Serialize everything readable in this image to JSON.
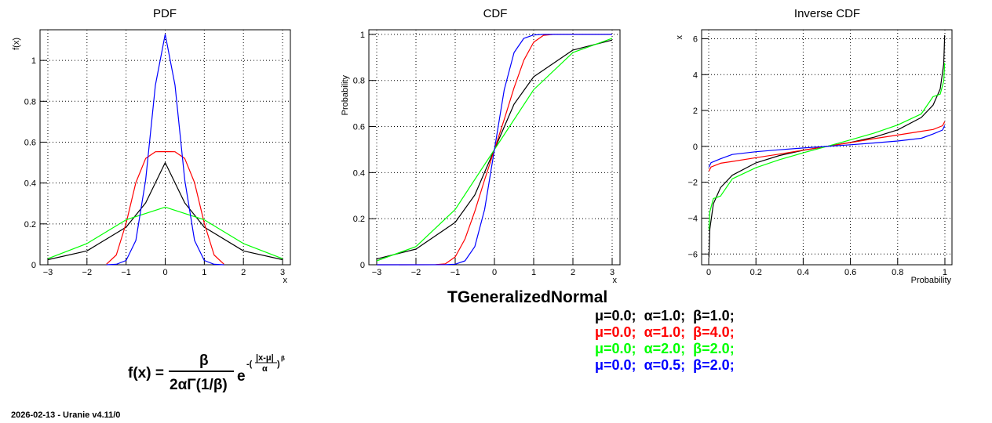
{
  "chart_data": [
    {
      "type": "line",
      "title": "PDF",
      "xlabel": "x",
      "ylabel": "f(x)",
      "xlim": [
        -3.2,
        3.2
      ],
      "ylim": [
        0,
        1.15
      ],
      "xticks": [
        -3,
        -2,
        -1,
        0,
        1,
        2,
        3
      ],
      "yticks": [
        0,
        0.2,
        0.4,
        0.6,
        0.8,
        1
      ],
      "ytick_labels": [
        "0",
        "0.2",
        "0.4",
        "0.6",
        "0.8",
        "1"
      ],
      "xtick_labels": [
        "−3",
        "−2",
        "−1",
        "0",
        "1",
        "2",
        "3"
      ],
      "grid": true,
      "series": [
        {
          "color": "#000000",
          "mu": 0.0,
          "alpha": 1.0,
          "beta": 1.0,
          "x": [
            -3,
            -2,
            -1,
            -0.5,
            0,
            0.5,
            1,
            2,
            3
          ],
          "y": [
            0.025,
            0.068,
            0.184,
            0.303,
            0.5,
            0.303,
            0.184,
            0.068,
            0.025
          ]
        },
        {
          "color": "#ff0000",
          "mu": 0.0,
          "alpha": 1.0,
          "beta": 4.0,
          "x": [
            -1.5,
            -1.25,
            -1,
            -0.75,
            -0.5,
            -0.25,
            0,
            0.25,
            0.5,
            0.75,
            1,
            1.25,
            1.5
          ],
          "y": [
            0.003,
            0.048,
            0.203,
            0.402,
            0.52,
            0.553,
            0.554,
            0.553,
            0.52,
            0.402,
            0.203,
            0.048,
            0.003
          ]
        },
        {
          "color": "#00ff00",
          "mu": 0.0,
          "alpha": 2.0,
          "beta": 2.0,
          "x": [
            -3,
            -2,
            -1,
            0,
            1,
            2,
            3
          ],
          "y": [
            0.03,
            0.104,
            0.22,
            0.282,
            0.22,
            0.104,
            0.03
          ]
        },
        {
          "color": "#0000ff",
          "mu": 0.0,
          "alpha": 0.5,
          "beta": 2.0,
          "x": [
            -1.5,
            -1.25,
            -1,
            -0.75,
            -0.5,
            -0.25,
            0,
            0.25,
            0.5,
            0.75,
            1,
            1.25,
            1.5
          ],
          "y": [
            0.0001,
            0.0022,
            0.021,
            0.119,
            0.415,
            0.879,
            1.128,
            0.879,
            0.415,
            0.119,
            0.021,
            0.0022,
            0.0001
          ]
        }
      ]
    },
    {
      "type": "line",
      "title": "CDF",
      "xlabel": "x",
      "ylabel": "Probability",
      "xlim": [
        -3.2,
        3.2
      ],
      "ylim": [
        0,
        1.02
      ],
      "xticks": [
        -3,
        -2,
        -1,
        0,
        1,
        2,
        3
      ],
      "yticks": [
        0,
        0.2,
        0.4,
        0.6,
        0.8,
        1
      ],
      "ytick_labels": [
        "0",
        "0.2",
        "0.4",
        "0.6",
        "0.8",
        "1"
      ],
      "xtick_labels": [
        "−3",
        "−2",
        "−1",
        "0",
        "1",
        "2",
        "3"
      ],
      "grid": true,
      "series": [
        {
          "color": "#000000",
          "mu": 0.0,
          "alpha": 1.0,
          "beta": 1.0,
          "x": [
            -3,
            -2,
            -1,
            -0.5,
            0,
            0.5,
            1,
            2,
            3
          ],
          "y": [
            0.025,
            0.068,
            0.184,
            0.303,
            0.5,
            0.697,
            0.816,
            0.932,
            0.975
          ]
        },
        {
          "color": "#ff0000",
          "mu": 0.0,
          "alpha": 1.0,
          "beta": 4.0,
          "x": [
            -3,
            -1.5,
            -1.25,
            -1,
            -0.75,
            -0.5,
            -0.25,
            0,
            0.25,
            0.5,
            0.75,
            1,
            1.25,
            1.5,
            3
          ],
          "y": [
            0,
            0.0002,
            0.004,
            0.034,
            0.112,
            0.232,
            0.369,
            0.5,
            0.631,
            0.768,
            0.888,
            0.966,
            0.996,
            0.9998,
            1
          ]
        },
        {
          "color": "#00ff00",
          "mu": 0.0,
          "alpha": 2.0,
          "beta": 2.0,
          "x": [
            -3,
            -2,
            -1,
            0,
            1,
            2,
            3
          ],
          "y": [
            0.017,
            0.079,
            0.24,
            0.5,
            0.76,
            0.921,
            0.983
          ]
        },
        {
          "color": "#0000ff",
          "mu": 0.0,
          "alpha": 0.5,
          "beta": 2.0,
          "x": [
            -3,
            -1.25,
            -1,
            -0.75,
            -0.5,
            -0.25,
            0,
            0.25,
            0.5,
            0.75,
            1,
            1.25,
            3
          ],
          "y": [
            0,
            0.0002,
            0.0023,
            0.017,
            0.079,
            0.24,
            0.5,
            0.76,
            0.921,
            0.983,
            0.9977,
            0.9998,
            1
          ]
        }
      ]
    },
    {
      "type": "line",
      "title": "Inverse CDF",
      "xlabel": "Probability",
      "ylabel": "x",
      "xlim": [
        -0.03,
        1.03
      ],
      "ylim": [
        -6.6,
        6.5
      ],
      "xticks": [
        0,
        0.2,
        0.4,
        0.6,
        0.8,
        1
      ],
      "yticks": [
        -6,
        -4,
        -2,
        0,
        2,
        4,
        6
      ],
      "xtick_labels": [
        "0",
        "0.2",
        "0.4",
        "0.6",
        "0.8",
        "1"
      ],
      "ytick_labels": [
        "−6",
        "−4",
        "−2",
        "0",
        "2",
        "4",
        "6"
      ],
      "grid": true,
      "series": [
        {
          "color": "#000000",
          "mu": 0.0,
          "alpha": 1.0,
          "beta": 1.0,
          "x": [
            0.001,
            0.005,
            0.02,
            0.05,
            0.1,
            0.2,
            0.3,
            0.4,
            0.5,
            0.6,
            0.7,
            0.8,
            0.9,
            0.95,
            0.98,
            0.995,
            0.999
          ],
          "y": [
            -6.2,
            -4.6,
            -3.2,
            -2.3,
            -1.61,
            -0.92,
            -0.51,
            -0.22,
            0,
            0.22,
            0.51,
            0.92,
            1.61,
            2.3,
            3.2,
            4.6,
            6.2
          ]
        },
        {
          "color": "#ff0000",
          "mu": 0.0,
          "alpha": 1.0,
          "beta": 4.0,
          "x": [
            0.001,
            0.01,
            0.05,
            0.1,
            0.2,
            0.3,
            0.4,
            0.5,
            0.6,
            0.7,
            0.8,
            0.9,
            0.95,
            0.99,
            0.999
          ],
          "y": [
            -1.38,
            -1.15,
            -0.94,
            -0.84,
            -0.63,
            -0.43,
            -0.21,
            0,
            0.21,
            0.43,
            0.63,
            0.84,
            0.94,
            1.15,
            1.38
          ]
        },
        {
          "color": "#00ff00",
          "mu": 0.0,
          "alpha": 2.0,
          "beta": 2.0,
          "x": [
            0.001,
            0.005,
            0.02,
            0.05,
            0.1,
            0.2,
            0.3,
            0.4,
            0.5,
            0.6,
            0.7,
            0.8,
            0.9,
            0.95,
            0.98,
            0.995,
            0.999
          ],
          "y": [
            -4.65,
            -3.64,
            -2.91,
            -2.77,
            -1.81,
            -1.19,
            -0.74,
            -0.36,
            0,
            0.36,
            0.74,
            1.19,
            1.81,
            2.77,
            2.91,
            3.64,
            4.65
          ]
        },
        {
          "color": "#0000ff",
          "mu": 0.0,
          "alpha": 0.5,
          "beta": 2.0,
          "x": [
            0.001,
            0.01,
            0.05,
            0.1,
            0.2,
            0.3,
            0.4,
            0.5,
            0.6,
            0.7,
            0.8,
            0.9,
            0.95,
            0.99,
            0.999
          ],
          "y": [
            -1.16,
            -0.91,
            -0.69,
            -0.45,
            -0.3,
            -0.19,
            -0.09,
            0,
            0.09,
            0.19,
            0.3,
            0.45,
            0.69,
            0.91,
            1.16
          ]
        }
      ]
    }
  ],
  "main_title": "TGeneralizedNormal",
  "params": [
    {
      "mu": "μ=0.0;",
      "alpha": "α=1.0;",
      "beta": "β=1.0;",
      "color": "#000000"
    },
    {
      "mu": "μ=0.0;",
      "alpha": "α=1.0;",
      "beta": "β=4.0;",
      "color": "#ff0000"
    },
    {
      "mu": "μ=0.0;",
      "alpha": "α=2.0;",
      "beta": "β=2.0;",
      "color": "#00ff00"
    },
    {
      "mu": "μ=0.0;",
      "alpha": "α=0.5;",
      "beta": "β=2.0;",
      "color": "#0000ff"
    }
  ],
  "formula": {
    "lhs": "f(x) =",
    "numerator": "β",
    "denominator": "2αΓ(1/β)",
    "base": "e",
    "exp_sign": "-(",
    "exp_num": "|x-μ|",
    "exp_den": "α",
    "exp_close": ")",
    "exp_power": "β"
  },
  "footer": "2026-02-13 - Uranie v4.11/0"
}
